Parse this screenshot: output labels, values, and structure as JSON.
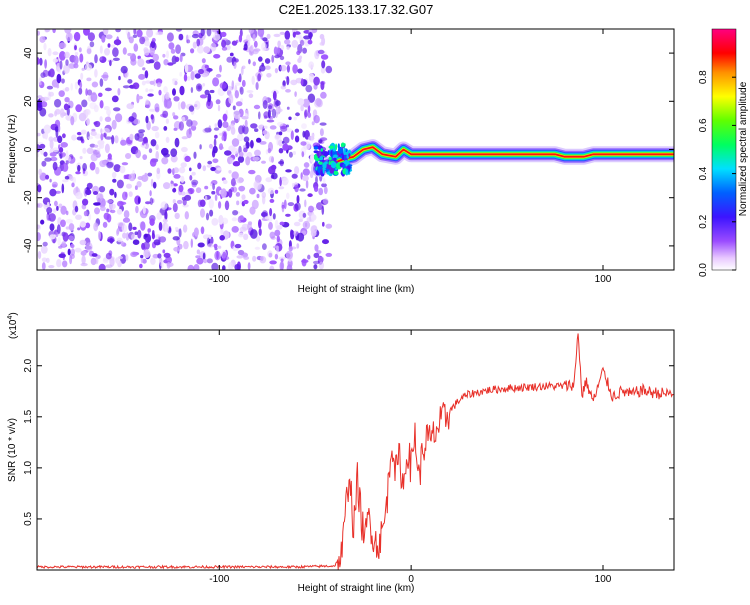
{
  "title": "C2E1.2025.133.17.32.G07",
  "colors": {
    "snr_line": "#e8312a",
    "speckle": "#7a2ff0",
    "axis": "#000000"
  },
  "chart_data": [
    {
      "type": "heatmap",
      "xlabel": "Height of straight line (km)",
      "ylabel": "Frequency (Hz)",
      "xlim": [
        -195,
        137
      ],
      "ylim": [
        -50,
        50
      ],
      "x_ticks": [
        -100,
        0,
        100
      ],
      "x_tick_labels": [
        "-100",
        "",
        "100"
      ],
      "y_ticks": [
        -40,
        -20,
        0,
        20,
        40
      ],
      "y_tick_labels": [
        "-40",
        "-20",
        "0",
        "20",
        "40"
      ],
      "colorbar": {
        "label": "Normalized spectral amplitude",
        "range": [
          0,
          1
        ],
        "ticks": [
          0.0,
          0.2,
          0.4,
          0.6,
          0.8
        ],
        "tick_labels": [
          "0.0",
          "0.2",
          "0.4",
          "0.6",
          "0.8"
        ],
        "colormap": "rainbow (violet-blue-cyan-green-yellow-red-magenta)"
      },
      "noise_region_x": [
        -195,
        -48
      ],
      "signal_track": {
        "x": [
          -48,
          -42,
          -35,
          -30,
          -25,
          -20,
          -15,
          -8,
          -4,
          0,
          10,
          20,
          40,
          60,
          75,
          80,
          85,
          90,
          95,
          110,
          137
        ],
        "y": [
          -8,
          -6,
          -4,
          -3,
          0,
          1,
          -2,
          -3,
          0,
          -2,
          -2,
          -2,
          -2,
          -2,
          -2,
          -3,
          -3,
          -3,
          -2,
          -2,
          -2
        ]
      }
    },
    {
      "type": "line",
      "xlabel": "Height of straight line (km)",
      "ylabel": "SNR (10 * v/v)",
      "y_scale_label": "(x10",
      "y_scale_exp": "4",
      "y_scale_close": ")",
      "xlim": [
        -195,
        137
      ],
      "ylim": [
        0,
        2.35
      ],
      "x_ticks": [
        -100,
        0,
        100
      ],
      "x_tick_labels": [
        "-100",
        "0",
        "100"
      ],
      "y_ticks": [
        0.5,
        1.0,
        1.5,
        2.0
      ],
      "y_tick_labels": [
        "0.5",
        "1.0",
        "1.5",
        "2.0"
      ],
      "series": [
        {
          "x": [
            -195,
            -120,
            -60,
            -40,
            -36,
            -34,
            -32,
            -30,
            -28,
            -26,
            -24,
            -22,
            -20,
            -18,
            -16,
            -14,
            -12,
            -10,
            -8,
            -6,
            -4,
            -2,
            0,
            2,
            4,
            6,
            8,
            10,
            14,
            18,
            22,
            26,
            30,
            40,
            50,
            60,
            70,
            80,
            85,
            87,
            89,
            91,
            95,
            100,
            105,
            110,
            115,
            120,
            125,
            130,
            137
          ],
          "y": [
            0.03,
            0.03,
            0.03,
            0.04,
            0.15,
            0.6,
            1.0,
            0.35,
            0.9,
            0.5,
            0.3,
            0.55,
            0.35,
            0.25,
            0.3,
            0.45,
            0.8,
            1.3,
            0.95,
            1.1,
            0.8,
            1.2,
            1.0,
            1.35,
            0.9,
            1.15,
            1.3,
            1.25,
            1.4,
            1.5,
            1.6,
            1.68,
            1.72,
            1.76,
            1.78,
            1.79,
            1.8,
            1.8,
            1.82,
            2.35,
            1.7,
            1.85,
            1.65,
            1.95,
            1.7,
            1.75,
            1.72,
            1.76,
            1.74,
            1.73,
            1.72
          ]
        }
      ]
    }
  ]
}
